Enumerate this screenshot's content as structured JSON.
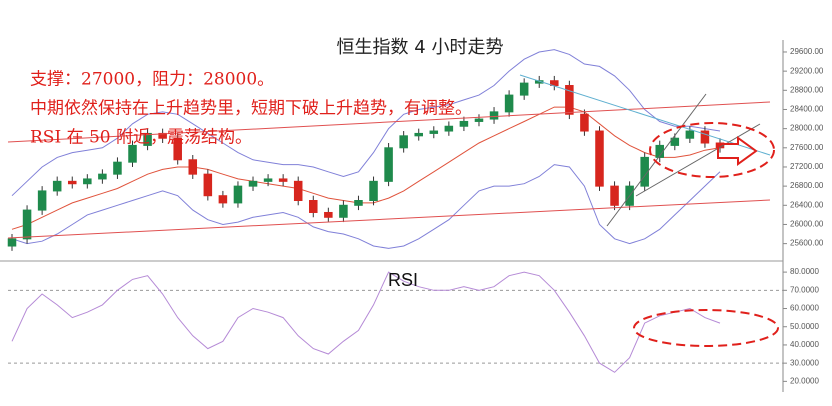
{
  "chart_data": [
    {
      "type": "candlestick",
      "title": "恒生指数   4 小时走势",
      "annotations": [
        "支撑：27000，阻力：28000。",
        "中期依然保持在上升趋势里，短期下破上升趋势，有调整。",
        "RSI 在 50 附近，震荡结构。"
      ],
      "open": [
        25550,
        25700,
        26300,
        26700,
        26900,
        26850,
        26950,
        27050,
        27300,
        27650,
        27900,
        27800,
        27350,
        27050,
        26600,
        26450,
        26800,
        26900,
        26950,
        26900,
        26500,
        26250,
        26150,
        26400,
        26500,
        26900,
        27600,
        27850,
        27900,
        27950,
        28050,
        28150,
        28200,
        28350,
        28700,
        28950,
        29000,
        28900,
        28300,
        27950,
        26800,
        26400,
        26800,
        27400,
        27650,
        27800,
        27950,
        27700
      ],
      "high": [
        25800,
        26400,
        26800,
        27000,
        27000,
        27050,
        27150,
        27400,
        27750,
        28000,
        28000,
        27900,
        27450,
        27150,
        26700,
        26900,
        27000,
        27050,
        27050,
        27000,
        26600,
        26350,
        26500,
        26600,
        27000,
        27700,
        27950,
        28000,
        28050,
        28150,
        28250,
        28300,
        28450,
        28800,
        29050,
        29100,
        29100,
        29000,
        28400,
        28050,
        26900,
        26900,
        27500,
        27750,
        27900,
        28050,
        28050,
        27800
      ],
      "low": [
        25450,
        25600,
        26200,
        26600,
        26750,
        26750,
        26850,
        26950,
        27200,
        27550,
        27700,
        27250,
        26950,
        26500,
        26350,
        26350,
        26700,
        26800,
        26800,
        26400,
        26150,
        26050,
        26050,
        26300,
        26400,
        26800,
        27500,
        27750,
        27800,
        27850,
        27950,
        28050,
        28100,
        28250,
        28600,
        28850,
        28800,
        28200,
        27850,
        26700,
        26300,
        26300,
        26700,
        27300,
        27550,
        27700,
        27600,
        27500
      ],
      "close": [
        25700,
        26300,
        26700,
        26900,
        26850,
        26950,
        27050,
        27300,
        27650,
        27900,
        27800,
        27350,
        27050,
        26600,
        26450,
        26800,
        26900,
        26950,
        26900,
        26500,
        26250,
        26150,
        26400,
        26500,
        26900,
        27600,
        27850,
        27900,
        27950,
        28050,
        28150,
        28200,
        28350,
        28700,
        28950,
        29000,
        28900,
        28300,
        27950,
        26800,
        26400,
        26800,
        27400,
        27650,
        27800,
        27950,
        27700,
        27600
      ],
      "up_color": "#1f8a4c",
      "down_color": "#d7261e",
      "overlays": [
        {
          "color": "#8080d8",
          "values": [
            26600,
            26900,
            27200,
            27400,
            27500,
            27550,
            27600,
            27800,
            28100,
            28300,
            28350,
            28300,
            28100,
            27900,
            27700,
            27500,
            27350,
            27300,
            27250,
            27250,
            27200,
            27100,
            27000,
            27100,
            27500,
            28000,
            28300,
            28400,
            28450,
            28500,
            28600,
            28700,
            28900,
            29200,
            29450,
            29600,
            29650,
            29550,
            29350,
            29300,
            29100,
            28800,
            28400,
            28150,
            28050,
            28050,
            28000,
            27950
          ]
        },
        {
          "color": "#e0533c",
          "values": [
            25900,
            26000,
            26150,
            26300,
            26450,
            26550,
            26650,
            26750,
            26900,
            27050,
            27150,
            27200,
            27200,
            27150,
            27050,
            26950,
            26900,
            26850,
            26800,
            26750,
            26650,
            26550,
            26500,
            26450,
            26450,
            26550,
            26700,
            26900,
            27100,
            27300,
            27500,
            27700,
            27850,
            28000,
            28150,
            28300,
            28450,
            28450,
            28350,
            28100,
            27850,
            27650,
            27500,
            27400,
            27400,
            27450,
            27550,
            27600
          ]
        },
        {
          "color": "#8080d8",
          "values": [
            25700,
            25600,
            25650,
            25800,
            26000,
            26200,
            26300,
            26400,
            26500,
            26600,
            26700,
            26600,
            26300,
            26100,
            26000,
            26050,
            26150,
            26200,
            26250,
            26150,
            25950,
            25850,
            25800,
            25700,
            25550,
            25500,
            25550,
            25700,
            25900,
            26100,
            26400,
            26700,
            26800,
            26800,
            26850,
            27000,
            27250,
            27200,
            26800,
            26000,
            25700,
            25600,
            25700,
            25900,
            26200,
            26500,
            26800,
            27100
          ]
        }
      ],
      "ylim": [
        25300,
        29850
      ],
      "yticks": [
        {
          "value": 25600,
          "label": "25600.00"
        },
        {
          "value": 26000,
          "label": "26000.00"
        },
        {
          "value": 26400,
          "label": "26400.00"
        },
        {
          "value": 26800,
          "label": "26800.00"
        },
        {
          "value": 27200,
          "label": "27200.00"
        },
        {
          "value": 27600,
          "label": "27600.00"
        },
        {
          "value": 28000,
          "label": "28000.00"
        },
        {
          "value": 28400,
          "label": "28400.00"
        },
        {
          "value": 28800,
          "label": "28800.00"
        },
        {
          "value": 29200,
          "label": "29200.00"
        },
        {
          "value": 29600,
          "label": "29600.00"
        }
      ]
    },
    {
      "type": "line",
      "title": "RSI",
      "color": "#b58ad6",
      "values": [
        42,
        60,
        68,
        62,
        55,
        58,
        62,
        70,
        76,
        78,
        68,
        55,
        45,
        38,
        42,
        55,
        60,
        58,
        55,
        45,
        38,
        35,
        42,
        48,
        62,
        80,
        75,
        72,
        70,
        70,
        72,
        70,
        72,
        78,
        80,
        78,
        70,
        58,
        45,
        30,
        25,
        33,
        52,
        56,
        58,
        60,
        55,
        52
      ],
      "reference_lines": [
        30,
        70
      ],
      "ylim": [
        18,
        85
      ],
      "yticks": [
        {
          "value": 20,
          "label": "20.0000"
        },
        {
          "value": 30,
          "label": "30.0000"
        },
        {
          "value": 40,
          "label": "40.0000"
        },
        {
          "value": 50,
          "label": "50.0000"
        },
        {
          "value": 60,
          "label": "60.0000"
        },
        {
          "value": 70,
          "label": "70.0000"
        },
        {
          "value": 80,
          "label": "80.0000"
        }
      ]
    }
  ]
}
